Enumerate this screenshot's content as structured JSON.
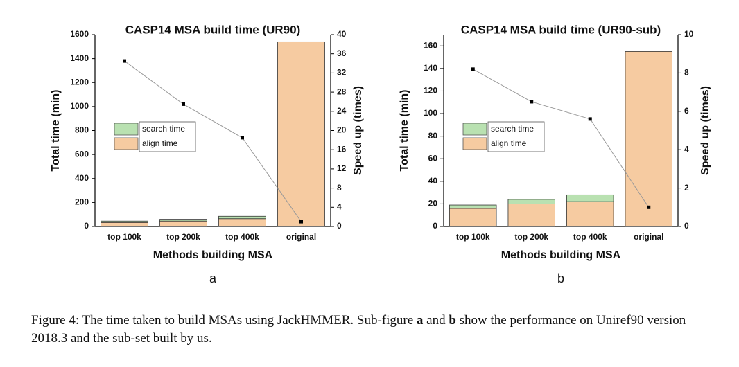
{
  "chart_data": [
    {
      "type": "bar",
      "stacked": true,
      "title": "CASP14 MSA build time (UR90)",
      "categories": [
        "top 100k",
        "top 200k",
        "top 400k",
        "original"
      ],
      "series": [
        {
          "name": "search time",
          "color": "#b9e1b1",
          "values": [
            12,
            15,
            20,
            0
          ]
        },
        {
          "name": "align time",
          "color": "#f6cba1",
          "values": [
            33,
            45,
            65,
            1540
          ]
        },
        {
          "type": "line",
          "axis": "y2",
          "color": "#999999",
          "values": [
            34.5,
            25.5,
            18.5,
            1
          ]
        }
      ],
      "xlabel": "Methods building MSA",
      "ylabel": "Total time (min)",
      "y2label": "Speed up (times)",
      "ylim": [
        0,
        1600
      ],
      "yticks": [
        0,
        200,
        400,
        600,
        800,
        1000,
        1200,
        1400,
        1600
      ],
      "y2lim": [
        0,
        40
      ],
      "y2ticks": [
        0,
        4,
        8,
        12,
        16,
        20,
        24,
        28,
        32,
        36,
        40
      ],
      "panel_label": "a"
    },
    {
      "type": "bar",
      "stacked": true,
      "title": "CASP14 MSA build time (UR90-sub)",
      "categories": [
        "top 100k",
        "top 200k",
        "top 400k",
        "original"
      ],
      "series": [
        {
          "name": "search time",
          "color": "#b9e1b1",
          "values": [
            3,
            4,
            6,
            0
          ]
        },
        {
          "name": "align time",
          "color": "#f6cba1",
          "values": [
            16,
            20,
            22,
            155
          ]
        },
        {
          "type": "line",
          "axis": "y2",
          "color": "#999999",
          "values": [
            8.2,
            6.5,
            5.6,
            1
          ]
        }
      ],
      "xlabel": "Methods building MSA",
      "ylabel": "Total time (min)",
      "y2label": "Speed up (times)",
      "ylim": [
        0,
        170
      ],
      "yticks": [
        0,
        20,
        40,
        60,
        80,
        100,
        120,
        140,
        160
      ],
      "y2lim": [
        0,
        10
      ],
      "y2ticks": [
        0,
        2,
        4,
        6,
        8,
        10
      ],
      "panel_label": "b"
    }
  ],
  "caption": [
    {
      "text": "Figure 4: The time taken to build MSAs using JackHMMER. Sub-figure "
    },
    {
      "text": "a",
      "bold": true
    },
    {
      "text": " and "
    },
    {
      "text": "b",
      "bold": true
    },
    {
      "text": " show the performance on Uniref90 version 2018.3 and the sub-set built by us."
    }
  ]
}
